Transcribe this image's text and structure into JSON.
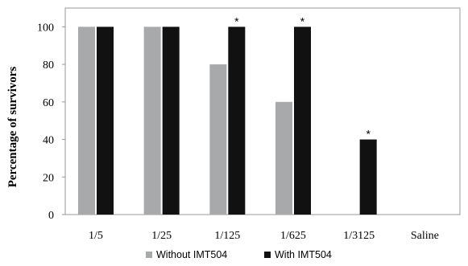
{
  "chart_data": {
    "type": "bar",
    "categories": [
      "1/5",
      "1/25",
      "1/125",
      "1/625",
      "1/3125",
      "Saline"
    ],
    "series": [
      {
        "name": "Without IMT504",
        "color": "#a7a9ab",
        "values": [
          100,
          100,
          80,
          60,
          0,
          0
        ]
      },
      {
        "name": "With IMT504",
        "color": "#111111",
        "values": [
          100,
          100,
          100,
          100,
          40,
          0
        ]
      }
    ],
    "significance": [
      {
        "category": "1/125",
        "series": "With IMT504",
        "mark": "*"
      },
      {
        "category": "1/625",
        "series": "With IMT504",
        "mark": "*"
      },
      {
        "category": "1/3125",
        "series": "With IMT504",
        "mark": "*"
      }
    ],
    "ylabel": "Percentage of survivors",
    "xlabel": "",
    "title": "",
    "ylim": [
      0,
      110
    ],
    "yticks": [
      0,
      20,
      40,
      60,
      80,
      100
    ],
    "grid": false,
    "legend_position": "bottom-center"
  }
}
